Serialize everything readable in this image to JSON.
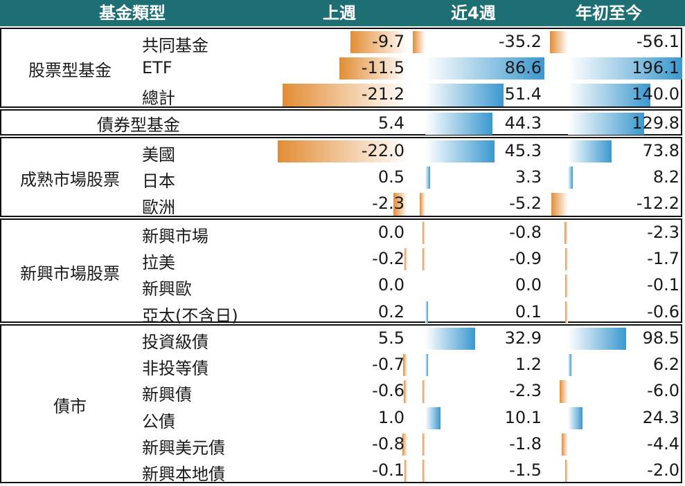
{
  "header": {
    "type_label": "基金類型",
    "periods": [
      "上週",
      "近4週",
      "年初至今"
    ]
  },
  "groups": [
    {
      "name": "股票型基金",
      "rows": [
        {
          "label": "共同基金",
          "values": [
            "-9.7",
            "-35.2",
            "-56.1"
          ]
        },
        {
          "label": "ETF",
          "values": [
            "-11.5",
            "86.6",
            "196.1"
          ]
        },
        {
          "label": "總計",
          "values": [
            "-21.2",
            "51.4",
            "140.0"
          ]
        }
      ]
    },
    {
      "name": "債券型基金",
      "single": true,
      "rows": [
        {
          "label": "",
          "values": [
            "5.4",
            "44.3",
            "129.8"
          ]
        }
      ]
    },
    {
      "name": "成熟市場股票",
      "rows": [
        {
          "label": "美國",
          "values": [
            "-22.0",
            "45.3",
            "73.8"
          ]
        },
        {
          "label": "日本",
          "values": [
            "0.5",
            "3.3",
            "8.2"
          ]
        },
        {
          "label": "歐洲",
          "values": [
            "-2.3",
            "-5.2",
            "-12.2"
          ]
        }
      ]
    },
    {
      "name": "新興市場股票",
      "rows": [
        {
          "label": "新興市場",
          "values": [
            "0.0",
            "-0.8",
            "-2.3"
          ]
        },
        {
          "label": "拉美",
          "values": [
            "-0.2",
            "-0.9",
            "-1.7"
          ]
        },
        {
          "label": "新興歐",
          "values": [
            "0.0",
            "0.0",
            "-0.1"
          ]
        },
        {
          "label": "亞太(不含日)",
          "values": [
            "0.2",
            "0.1",
            "-0.6"
          ]
        }
      ]
    },
    {
      "name": "債市",
      "rows": [
        {
          "label": "投資級債",
          "values": [
            "5.5",
            "32.9",
            "98.5"
          ]
        },
        {
          "label": "非投等債",
          "values": [
            "-0.7",
            "1.2",
            "6.2"
          ]
        },
        {
          "label": "新興債",
          "values": [
            "-0.6",
            "-2.3",
            "-6.0"
          ]
        },
        {
          "label": "公債",
          "values": [
            "1.0",
            "10.1",
            "24.3"
          ]
        },
        {
          "label": "新興美元債",
          "values": [
            "-0.8",
            "-1.8",
            "-4.4"
          ]
        },
        {
          "label": "新興本地債",
          "values": [
            "-0.1",
            "-1.5",
            "-2.0"
          ]
        }
      ]
    }
  ],
  "colors": {
    "header_bg": "#1d6f73",
    "positive_bar": "#3a98cf",
    "negative_bar": "#e28d35",
    "border": "#111111"
  }
}
